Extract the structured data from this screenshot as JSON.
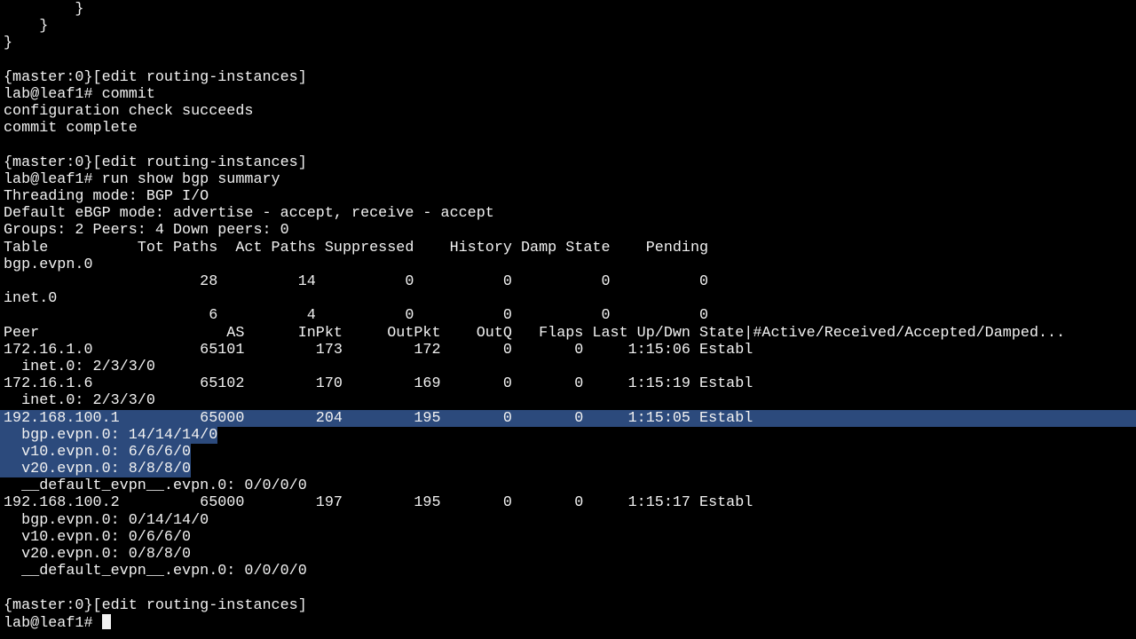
{
  "terminal": {
    "colors": {
      "background": "#000000",
      "foreground": "#f2f2f2",
      "selection": "#2c4a7c"
    },
    "lines": [
      {
        "text": "        }"
      },
      {
        "text": "    }"
      },
      {
        "text": "}"
      },
      {
        "text": ""
      },
      {
        "text": "{master:0}[edit routing-instances]"
      },
      {
        "text": "lab@leaf1# commit"
      },
      {
        "text": "configuration check succeeds"
      },
      {
        "text": "commit complete"
      },
      {
        "text": ""
      },
      {
        "text": "{master:0}[edit routing-instances]"
      },
      {
        "text": "lab@leaf1# run show bgp summary"
      },
      {
        "text": "Threading mode: BGP I/O"
      },
      {
        "text": "Default eBGP mode: advertise - accept, receive - accept"
      },
      {
        "text": "Groups: 2 Peers: 4 Down peers: 0"
      },
      {
        "text": "Table          Tot Paths  Act Paths Suppressed    History Damp State    Pending"
      },
      {
        "text": "bgp.evpn.0"
      },
      {
        "text": "                      28         14          0          0          0          0"
      },
      {
        "text": "inet.0"
      },
      {
        "text": "                       6          4          0          0          0          0"
      },
      {
        "text": "Peer                     AS      InPkt     OutPkt    OutQ   Flaps Last Up/Dwn State|#Active/Received/Accepted/Damped..."
      },
      {
        "text": "172.16.1.0            65101        173        172       0       0     1:15:06 Establ"
      },
      {
        "text": "  inet.0: 2/3/3/0"
      },
      {
        "text": "172.16.1.6            65102        170        169       0       0     1:15:19 Establ"
      },
      {
        "text": "  inet.0: 2/3/3/0"
      },
      {
        "text": "192.168.100.1         65000        204        195       0       0     1:15:05 Establ",
        "selected": "full"
      },
      {
        "text": "  bgp.evpn.0: 14/14/14/0",
        "selected": "text"
      },
      {
        "text": "  v10.evpn.0: 6/6/6/0",
        "selected": "text"
      },
      {
        "text": "  v20.evpn.0: 8/8/8/0",
        "selected": "text"
      },
      {
        "text": "  __default_evpn__.evpn.0: 0/0/0/0"
      },
      {
        "text": "192.168.100.2         65000        197        195       0       0     1:15:17 Establ"
      },
      {
        "text": "  bgp.evpn.0: 0/14/14/0"
      },
      {
        "text": "  v10.evpn.0: 0/6/6/0"
      },
      {
        "text": "  v20.evpn.0: 0/8/8/0"
      },
      {
        "text": "  __default_evpn__.evpn.0: 0/0/0/0"
      },
      {
        "text": ""
      },
      {
        "text": "{master:0}[edit routing-instances]"
      },
      {
        "text": "lab@leaf1# ",
        "cursor": true
      }
    ]
  }
}
